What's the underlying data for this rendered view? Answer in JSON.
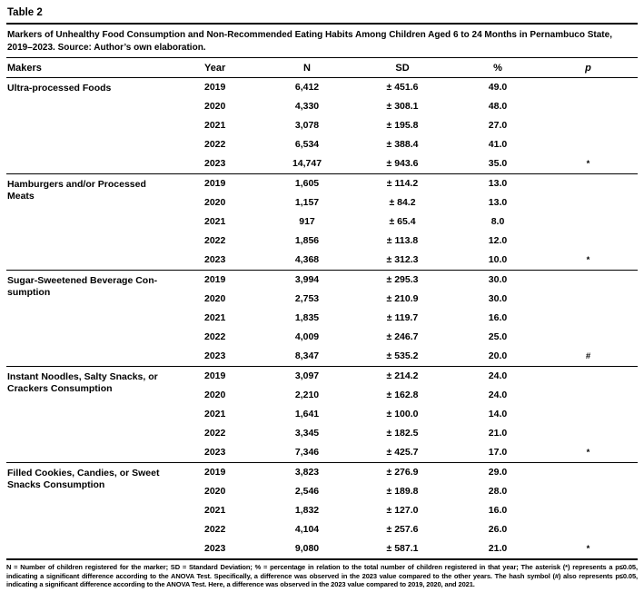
{
  "table_label": "Table 2",
  "caption": "Markers of Unhealthy Food Consumption and Non-Recommended Eating Habits Among Children Aged 6 to 24 Months in Pernambuco State, 2019–2023. Source: Author’s own elaboration.",
  "columns": [
    "Makers",
    "Year",
    "N",
    "SD",
    "%",
    "p"
  ],
  "sections": [
    {
      "marker": "Ultra-processed Foods",
      "rows": [
        {
          "year": "2019",
          "n": "6,412",
          "sd": "± 451.6",
          "pct": "49.0",
          "p": ""
        },
        {
          "year": "2020",
          "n": "4,330",
          "sd": "± 308.1",
          "pct": "48.0",
          "p": ""
        },
        {
          "year": "2021",
          "n": "3,078",
          "sd": "± 195.8",
          "pct": "27.0",
          "p": ""
        },
        {
          "year": "2022",
          "n": "6,534",
          "sd": "± 388.4",
          "pct": "41.0",
          "p": ""
        },
        {
          "year": "2023",
          "n": "14,747",
          "sd": "± 943.6",
          "pct": "35.0",
          "p": "*"
        }
      ]
    },
    {
      "marker": "Hamburgers and/or Processed\nMeats",
      "rows": [
        {
          "year": "2019",
          "n": "1,605",
          "sd": "± 114.2",
          "pct": "13.0",
          "p": ""
        },
        {
          "year": "2020",
          "n": "1,157",
          "sd": "± 84.2",
          "pct": "13.0",
          "p": ""
        },
        {
          "year": "2021",
          "n": "917",
          "sd": "± 65.4",
          "pct": "8.0",
          "p": ""
        },
        {
          "year": "2022",
          "n": "1,856",
          "sd": "± 113.8",
          "pct": "12.0",
          "p": ""
        },
        {
          "year": "2023",
          "n": "4,368",
          "sd": "± 312.3",
          "pct": "10.0",
          "p": "*"
        }
      ]
    },
    {
      "marker": "Sugar-Sweetened Beverage Con-\nsumption",
      "rows": [
        {
          "year": "2019",
          "n": "3,994",
          "sd": "± 295.3",
          "pct": "30.0",
          "p": ""
        },
        {
          "year": "2020",
          "n": "2,753",
          "sd": "± 210.9",
          "pct": "30.0",
          "p": ""
        },
        {
          "year": "2021",
          "n": "1,835",
          "sd": "± 119.7",
          "pct": "16.0",
          "p": ""
        },
        {
          "year": "2022",
          "n": "4,009",
          "sd": "± 246.7",
          "pct": "25.0",
          "p": ""
        },
        {
          "year": "2023",
          "n": "8,347",
          "sd": "± 535.2",
          "pct": "20.0",
          "p": "#"
        }
      ]
    },
    {
      "marker": "Instant Noodles, Salty Snacks, or\nCrackers Consumption",
      "rows": [
        {
          "year": "2019",
          "n": "3,097",
          "sd": "± 214.2",
          "pct": "24.0",
          "p": ""
        },
        {
          "year": "2020",
          "n": "2,210",
          "sd": "± 162.8",
          "pct": "24.0",
          "p": ""
        },
        {
          "year": "2021",
          "n": "1,641",
          "sd": "± 100.0",
          "pct": "14.0",
          "p": ""
        },
        {
          "year": "2022",
          "n": "3,345",
          "sd": "± 182.5",
          "pct": "21.0",
          "p": ""
        },
        {
          "year": "2023",
          "n": "7,346",
          "sd": "± 425.7",
          "pct": "17.0",
          "p": "*"
        }
      ]
    },
    {
      "marker": "Filled Cookies, Candies, or Sweet\nSnacks Consumption",
      "rows": [
        {
          "year": "2019",
          "n": "3,823",
          "sd": "± 276.9",
          "pct": "29.0",
          "p": ""
        },
        {
          "year": "2020",
          "n": "2,546",
          "sd": "± 189.8",
          "pct": "28.0",
          "p": ""
        },
        {
          "year": "2021",
          "n": "1,832",
          "sd": "± 127.0",
          "pct": "16.0",
          "p": ""
        },
        {
          "year": "2022",
          "n": "4,104",
          "sd": "± 257.6",
          "pct": "26.0",
          "p": ""
        },
        {
          "year": "2023",
          "n": "9,080",
          "sd": "± 587.1",
          "pct": "21.0",
          "p": "*"
        }
      ]
    }
  ],
  "footnote": "N = Number of children registered for the marker; SD = Standard Deviation; % = percentage in relation to the total number of children registered in that year; The asterisk (*) represents a p≤0.05, indicating a significant difference according to the ANOVA Test. Specifically, a difference was observed in the 2023 value compared to the other years. The hash symbol (#) also represents p≤0.05, indicating a significant difference according to the ANOVA Test. Here, a difference was observed in the 2023 value compared to 2019, 2020, and 2021."
}
